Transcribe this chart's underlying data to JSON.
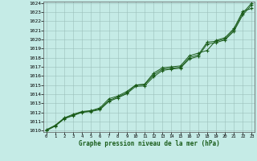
{
  "xlabel": "Graphe pression niveau de la mer (hPa)",
  "ylim": [
    1010,
    1024
  ],
  "xlim": [
    -0.3,
    23.3
  ],
  "yticks": [
    1010,
    1011,
    1012,
    1013,
    1014,
    1015,
    1016,
    1017,
    1018,
    1019,
    1020,
    1021,
    1022,
    1023,
    1024
  ],
  "xticks": [
    0,
    1,
    2,
    3,
    4,
    5,
    6,
    7,
    8,
    9,
    10,
    11,
    12,
    13,
    14,
    15,
    16,
    17,
    18,
    19,
    20,
    21,
    22,
    23
  ],
  "bg_color": "#c5ebe6",
  "grid_color": "#9bbfba",
  "line_color": "#1a5c1a",
  "lines": [
    [
      1010.1,
      1010.6,
      1011.4,
      1011.8,
      1012.1,
      1012.2,
      1012.5,
      1013.5,
      1013.8,
      1014.3,
      1015.0,
      1015.1,
      1016.3,
      1016.9,
      1017.0,
      1017.1,
      1018.2,
      1018.5,
      1018.8,
      1019.9,
      1020.2,
      1021.2,
      1023.1,
      1023.4
    ],
    [
      1010.05,
      1010.55,
      1011.35,
      1011.7,
      1012.05,
      1012.15,
      1012.4,
      1013.3,
      1013.7,
      1014.15,
      1015.0,
      1015.05,
      1016.1,
      1016.75,
      1016.85,
      1016.95,
      1018.0,
      1018.3,
      1019.7,
      1019.8,
      1020.05,
      1021.05,
      1022.9,
      1024.0
    ],
    [
      1010.0,
      1010.5,
      1011.3,
      1011.65,
      1012.0,
      1012.1,
      1012.3,
      1013.2,
      1013.6,
      1014.05,
      1014.85,
      1014.9,
      1015.9,
      1016.6,
      1016.75,
      1016.85,
      1017.85,
      1018.15,
      1019.5,
      1019.65,
      1019.95,
      1020.9,
      1022.7,
      1023.8
    ]
  ]
}
